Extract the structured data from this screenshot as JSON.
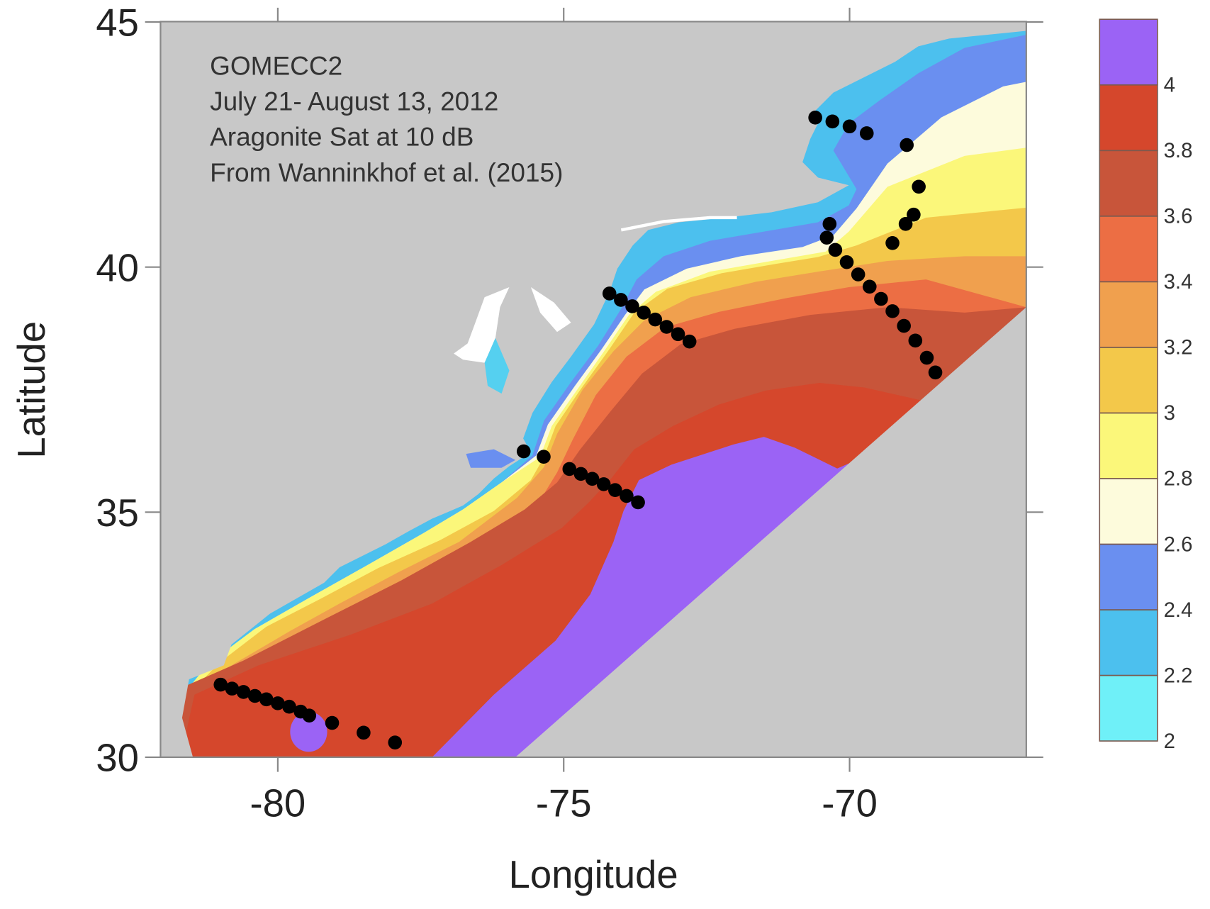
{
  "chart_data": {
    "type": "contour-map",
    "annotation": [
      "GOMECC2",
      "July 21- August 13, 2012",
      "Aragonite Sat at 10 dB",
      "From Wanninkhof et al. (2015)"
    ],
    "xlabel": "Longitude",
    "ylabel": "Latitude",
    "xlim": [
      -82.1,
      -66.9
    ],
    "ylim": [
      30,
      45
    ],
    "x_ticks": [
      -80,
      -75,
      -70
    ],
    "y_ticks": [
      30,
      35,
      40,
      45
    ],
    "x_tick_labels": [
      "-80",
      "-75",
      "-70"
    ],
    "y_tick_labels": [
      "30",
      "35",
      "40",
      "45"
    ],
    "land_color": "#c8c8c8",
    "colorbar": {
      "levels": [
        "2",
        "2.2",
        "2.4",
        "2.6",
        "2.8",
        "3",
        "3.2",
        "3.4",
        "3.6",
        "3.8",
        "4"
      ],
      "colors": [
        "#6ff0f8",
        "#4cc0ee",
        "#6a8ff0",
        "#fdfbdc",
        "#fbf77a",
        "#f3c84a",
        "#f0a04e",
        "#ec6e44",
        "#c8553a",
        "#d5472c",
        "#9b63f5"
      ]
    },
    "stations": [
      {
        "transect": "south",
        "points": [
          [
            -81.0,
            31.48
          ],
          [
            -80.8,
            31.4
          ],
          [
            -80.6,
            31.33
          ],
          [
            -80.4,
            31.25
          ],
          [
            -80.2,
            31.18
          ],
          [
            -80.0,
            31.1
          ],
          [
            -79.8,
            31.03
          ],
          [
            -79.6,
            30.93
          ],
          [
            -79.45,
            30.85
          ],
          [
            -79.05,
            30.7
          ],
          [
            -78.5,
            30.5
          ],
          [
            -77.95,
            30.3
          ]
        ]
      },
      {
        "transect": "hatteras",
        "points": [
          [
            -75.7,
            36.24
          ],
          [
            -75.35,
            36.13
          ],
          [
            -74.9,
            35.88
          ],
          [
            -74.7,
            35.78
          ],
          [
            -74.5,
            35.68
          ],
          [
            -74.3,
            35.57
          ],
          [
            -74.1,
            35.45
          ],
          [
            -73.9,
            35.33
          ],
          [
            -73.7,
            35.2
          ]
        ]
      },
      {
        "transect": "new-jersey",
        "points": [
          [
            -74.2,
            39.46
          ],
          [
            -74.0,
            39.33
          ],
          [
            -73.8,
            39.2
          ],
          [
            -73.6,
            39.07
          ],
          [
            -73.4,
            38.93
          ],
          [
            -73.2,
            38.78
          ],
          [
            -73.0,
            38.63
          ],
          [
            -72.8,
            38.48
          ]
        ]
      },
      {
        "transect": "new-england",
        "points": [
          [
            -70.35,
            40.88
          ],
          [
            -70.4,
            40.6
          ],
          [
            -70.25,
            40.35
          ],
          [
            -70.05,
            40.1
          ],
          [
            -69.85,
            39.85
          ],
          [
            -69.65,
            39.6
          ],
          [
            -69.45,
            39.35
          ],
          [
            -69.25,
            39.1
          ],
          [
            -69.05,
            38.8
          ],
          [
            -68.85,
            38.5
          ],
          [
            -68.65,
            38.15
          ],
          [
            -68.5,
            37.85
          ]
        ]
      },
      {
        "transect": "gulf-of-maine",
        "points": [
          [
            -70.6,
            43.05
          ],
          [
            -70.3,
            42.97
          ],
          [
            -70.0,
            42.87
          ],
          [
            -69.7,
            42.73
          ],
          [
            -69.0,
            42.49
          ]
        ]
      },
      {
        "transect": "georges-bank",
        "points": [
          [
            -68.79,
            41.64
          ],
          [
            -68.88,
            41.07
          ],
          [
            -69.02,
            40.88
          ],
          [
            -69.25,
            40.49
          ]
        ]
      }
    ]
  }
}
